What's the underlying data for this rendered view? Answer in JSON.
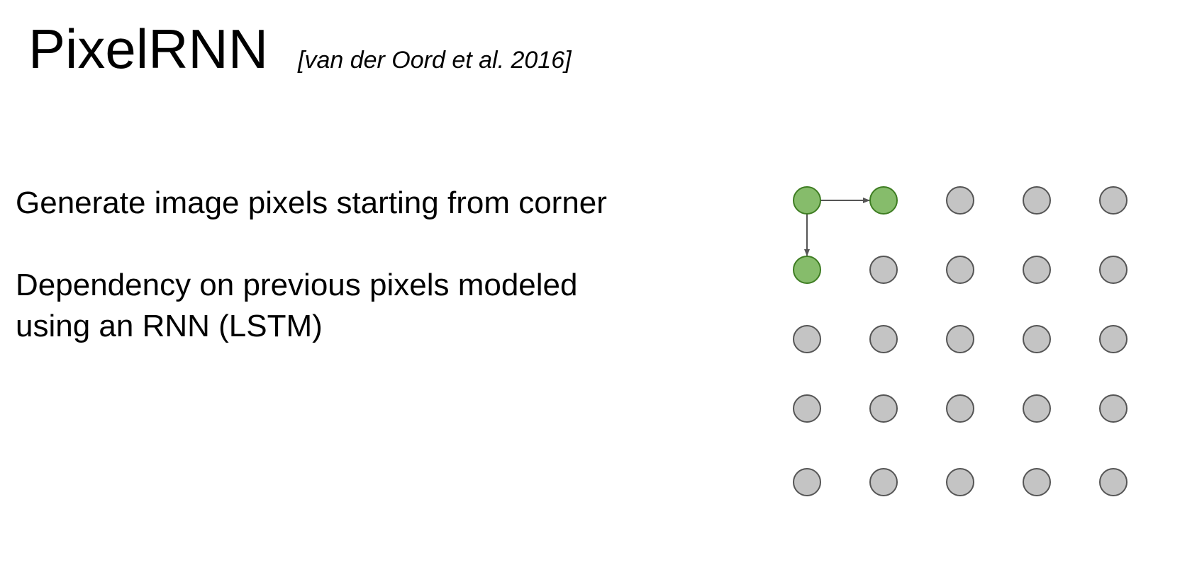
{
  "slide": {
    "title": "PixelRNN",
    "citation": "[van der Oord et al. 2016]",
    "bullets": [
      "Generate image pixels starting from corner",
      "Dependency on previous pixels modeled",
      "using an RNN (LSTM)"
    ]
  },
  "diagram": {
    "rows": 5,
    "cols": 5,
    "active_pixels": [
      [
        0,
        0
      ],
      [
        0,
        1
      ],
      [
        1,
        0
      ]
    ],
    "arrows": [
      {
        "from": [
          0,
          0
        ],
        "to": [
          0,
          1
        ]
      },
      {
        "from": [
          0,
          0
        ],
        "to": [
          1,
          0
        ]
      }
    ],
    "colors": {
      "active_fill": "#86bc6b",
      "active_stroke": "#3e7d22",
      "inactive_fill": "#c4c4c4",
      "inactive_stroke": "#555555",
      "arrow": "#555555"
    }
  }
}
